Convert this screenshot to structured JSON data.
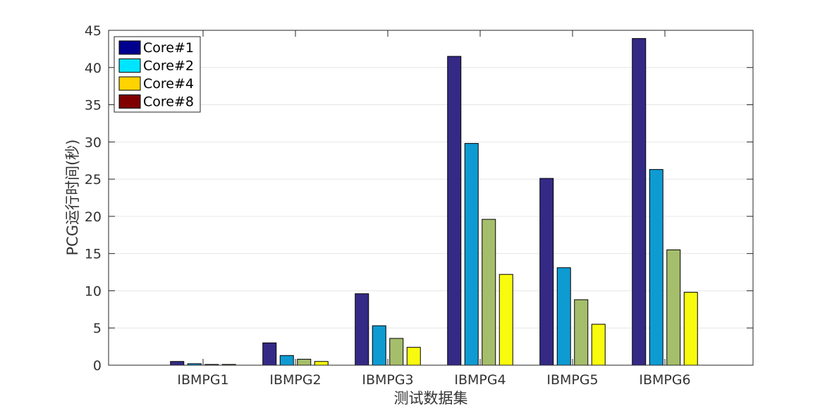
{
  "chart_data": {
    "type": "bar",
    "title": "",
    "xlabel": "测试数据集",
    "ylabel": "PCG运行时间(秒)",
    "categories": [
      "IBMPG1",
      "IBMPG2",
      "IBMPG3",
      "IBMPG4",
      "IBMPG5",
      "IBMPG6"
    ],
    "ylim": [
      0,
      45
    ],
    "yticks": [
      0,
      5,
      10,
      15,
      20,
      25,
      30,
      35,
      40,
      45
    ],
    "grid": "horizontal",
    "legend_position": "top-left",
    "series": [
      {
        "name": "Core#1",
        "values": [
          0.5,
          3.0,
          9.6,
          41.5,
          25.1,
          43.9
        ],
        "bar_color": "#342a85",
        "legend_color": "#00008f"
      },
      {
        "name": "Core#2",
        "values": [
          0.2,
          1.3,
          5.3,
          29.8,
          13.1,
          26.3
        ],
        "bar_color": "#0e9bd2",
        "legend_color": "#00e5ff"
      },
      {
        "name": "Core#4",
        "values": [
          0.1,
          0.8,
          3.6,
          19.6,
          8.8,
          15.5
        ],
        "bar_color": "#a5be6b",
        "legend_color": "#ffd400"
      },
      {
        "name": "Core#8",
        "values": [
          0.1,
          0.5,
          2.4,
          12.2,
          5.5,
          9.8
        ],
        "bar_color": "#f9fb0e",
        "legend_color": "#800000"
      }
    ]
  }
}
